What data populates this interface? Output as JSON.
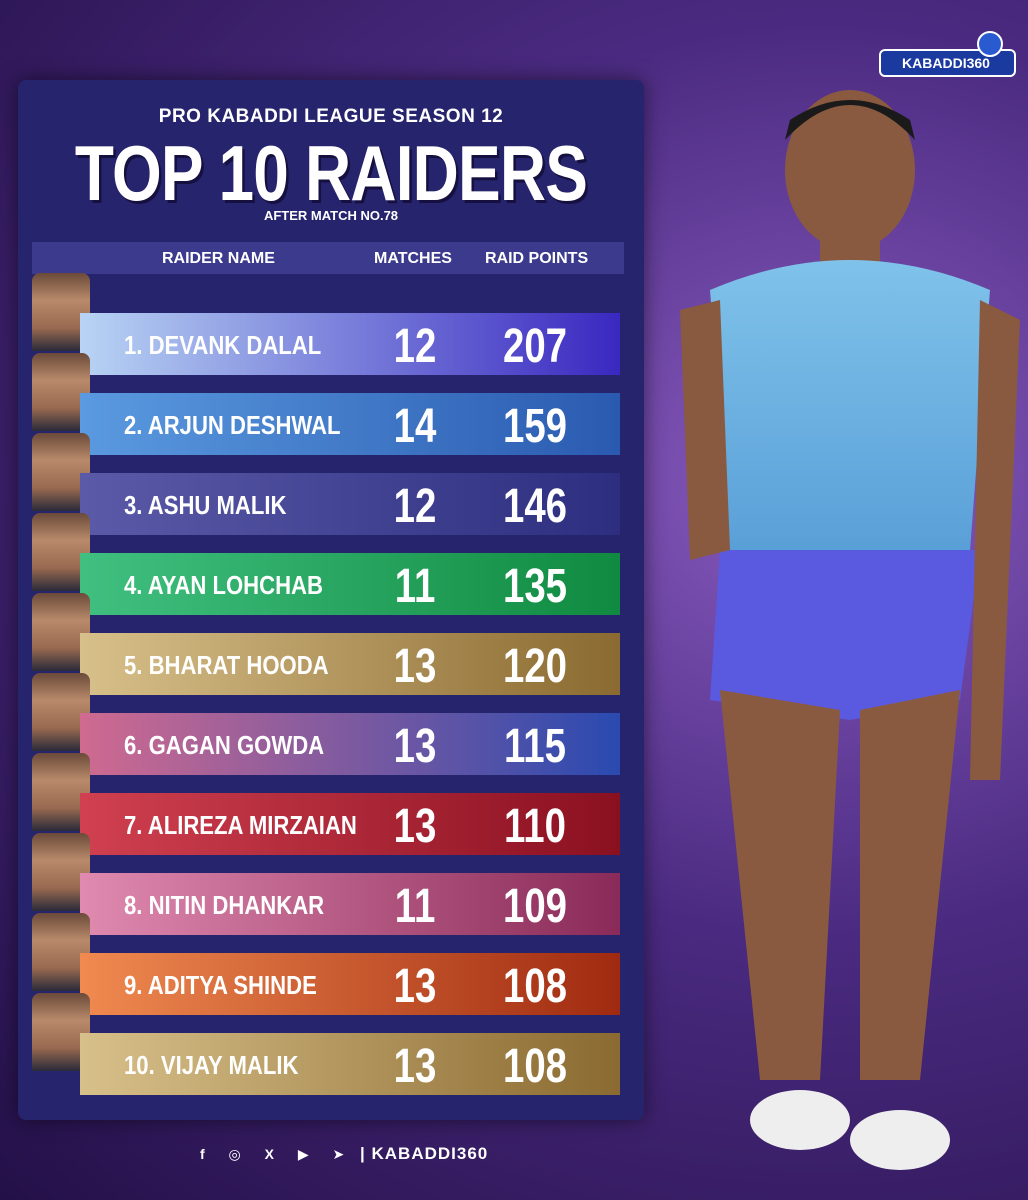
{
  "header": {
    "subtitle": "PRO KABADDI LEAGUE SEASON 12",
    "title": "TOP 10 RAIDERS",
    "note": "AFTER MATCH NO.78"
  },
  "logo": "KABADDI360",
  "table": {
    "columns": [
      "RAIDER NAME",
      "MATCHES",
      "RAID POINTS"
    ],
    "rows": [
      [
        "1. DEVANK DALAL",
        12,
        207
      ],
      [
        "2. ARJUN DESHWAL",
        14,
        159
      ],
      [
        "3. ASHU MALIK",
        12,
        146
      ],
      [
        "4. AYAN LOHCHAB",
        11,
        135
      ],
      [
        "5. BHARAT HOODA",
        13,
        120
      ],
      [
        "6. GAGAN GOWDA",
        13,
        115
      ],
      [
        "7. ALIREZA MIRZAIAN",
        13,
        110
      ],
      [
        "8. NITIN DHANKAR",
        11,
        109
      ],
      [
        "9. ADITYA SHINDE",
        13,
        108
      ],
      [
        "10. VIJAY MALIK",
        13,
        108
      ]
    ]
  },
  "footer": {
    "handle": "| KABADDI360"
  }
}
